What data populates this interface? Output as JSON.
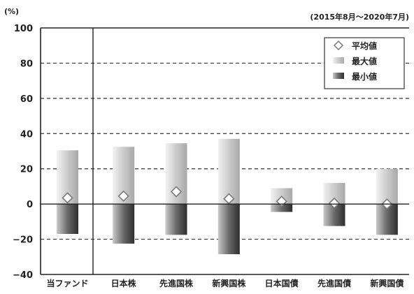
{
  "chart_data": {
    "type": "bar",
    "unit_label": "(%)",
    "period_label": "(2015年8月～2020年7月)",
    "categories": [
      "当ファンド",
      "日本株",
      "先進国株",
      "新興国株",
      "日本国債",
      "先進国債",
      "新興国債"
    ],
    "series": [
      {
        "name": "最大値",
        "values": [
          30.5,
          32.5,
          34.5,
          37.0,
          9.0,
          12.0,
          20.0
        ]
      },
      {
        "name": "最小値",
        "values": [
          -17.0,
          -22.5,
          -17.5,
          -28.5,
          -4.5,
          -12.5,
          -17.5
        ]
      },
      {
        "name": "平均値",
        "values": [
          3.5,
          4.5,
          7.0,
          3.0,
          1.5,
          0.5,
          0.0
        ]
      }
    ],
    "ylim": [
      -40,
      100
    ],
    "yticks": [
      -40,
      -20,
      0,
      20,
      40,
      60,
      80,
      100
    ],
    "ytick_labels": [
      "−40",
      "−20",
      "0",
      "20",
      "40",
      "60",
      "80",
      "100"
    ],
    "grid": "dashed horizontal",
    "legend_position": "top-right",
    "colors": {
      "bar_light": "#d9d9d9",
      "bar_mid": "#9a9a9a",
      "bar_dark": "#3d3d3d",
      "marker_fill": "#ffffff",
      "marker_stroke": "#777777",
      "axis": "#222222"
    }
  }
}
